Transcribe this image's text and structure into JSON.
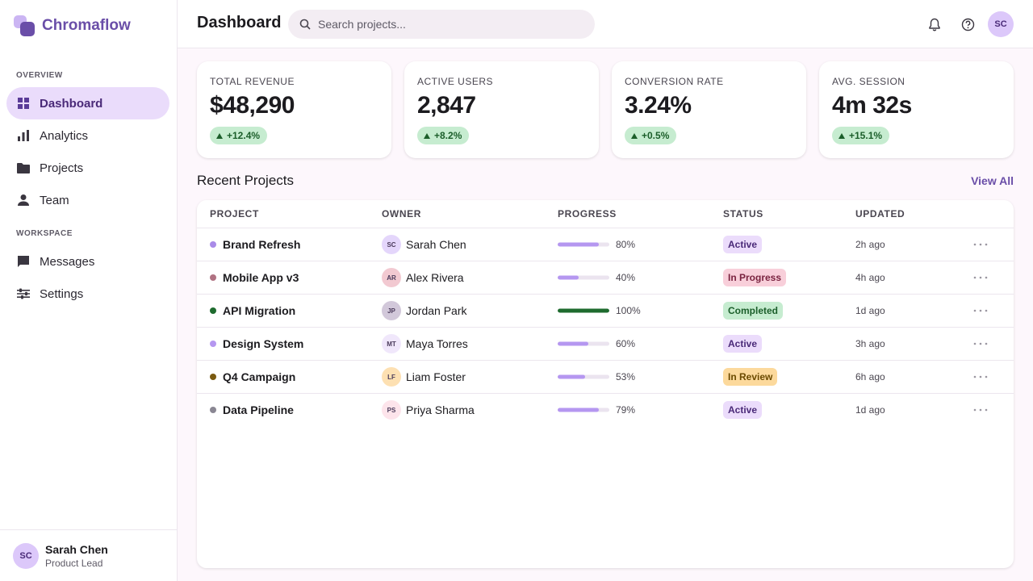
{
  "brand": {
    "name": "Chromaflow"
  },
  "nav": [
    {
      "title": "OVERVIEW",
      "items": [
        "Dashboard",
        "Analytics",
        "Projects",
        "Team"
      ]
    },
    {
      "title": "WORKSPACE",
      "items": [
        "Messages",
        "Settings"
      ]
    }
  ],
  "user": {
    "initials": "SC",
    "name": "Sarah Chen",
    "role": "Product Lead"
  },
  "header": {
    "title": "Dashboard",
    "search_placeholder": "Search projects...",
    "avatar": "SC"
  },
  "kpis": [
    {
      "label": "TOTAL REVENUE",
      "value": "$48,290",
      "change": "+12.4%"
    },
    {
      "label": "ACTIVE USERS",
      "value": "2,847",
      "change": "+8.2%"
    },
    {
      "label": "CONVERSION RATE",
      "value": "3.24%",
      "change": "+0.5%"
    },
    {
      "label": "AVG. SESSION",
      "value": "4m 32s",
      "change": "+15.1%"
    }
  ],
  "projects": {
    "title": "Recent Projects",
    "view_all": "View All",
    "columns": [
      "PROJECT",
      "OWNER",
      "PROGRESS",
      "STATUS",
      "UPDATED"
    ],
    "rows": [
      {
        "name": "Brand Refresh",
        "dot_color": "#a98be8",
        "initials": "SC",
        "avatar_color": "#e4d6fb",
        "owner": "Sarah Chen",
        "progress": {
          "value": 80,
          "label": "80%"
        },
        "bar_color": "#b597f0",
        "status": {
          "label": "Active",
          "bg": "#ebdcfb",
          "fg": "#4a2a78"
        },
        "updated": "2h ago"
      },
      {
        "name": "Mobile App v3",
        "dot_color": "#b07282",
        "initials": "AR",
        "avatar_color": "#f2c9d1",
        "owner": "Alex Rivera",
        "progress": {
          "value": 40,
          "label": "40%"
        },
        "bar_color": "#b597f0",
        "status": {
          "label": "In Progress",
          "bg": "#f8cfda",
          "fg": "#7a2340"
        },
        "updated": "4h ago"
      },
      {
        "name": "API Migration",
        "dot_color": "#1e6b2e",
        "initials": "JP",
        "avatar_color": "#d2c8da",
        "owner": "Jordan Park",
        "progress": {
          "value": 100,
          "label": "100%"
        },
        "bar_color": "#1e6b2e",
        "status": {
          "label": "Completed",
          "bg": "#c6ecd0",
          "fg": "#1b5e2a"
        },
        "updated": "1d ago"
      },
      {
        "name": "Design System",
        "dot_color": "#b597f0",
        "initials": "MT",
        "avatar_color": "#f0e7fb",
        "owner": "Maya Torres",
        "progress": {
          "value": 60,
          "label": "60%"
        },
        "bar_color": "#b597f0",
        "status": {
          "label": "Active",
          "bg": "#ebdcfb",
          "fg": "#4a2a78"
        },
        "updated": "3h ago"
      },
      {
        "name": "Q4 Campaign",
        "dot_color": "#7a5a10",
        "initials": "LF",
        "avatar_color": "#fde0b2",
        "owner": "Liam Foster",
        "progress": {
          "value": 53,
          "label": "53%"
        },
        "bar_color": "#b597f0",
        "status": {
          "label": "In Review",
          "bg": "#fcd99c",
          "fg": "#6b4a00"
        },
        "updated": "6h ago"
      },
      {
        "name": "Data Pipeline",
        "dot_color": "#8a8793",
        "initials": "PS",
        "avatar_color": "#fde4eb",
        "owner": "Priya Sharma",
        "progress": {
          "value": 79,
          "label": "79%"
        },
        "bar_color": "#b597f0",
        "status": {
          "label": "Active",
          "bg": "#ebdcfb",
          "fg": "#4a2a78"
        },
        "updated": "1d ago"
      }
    ]
  }
}
